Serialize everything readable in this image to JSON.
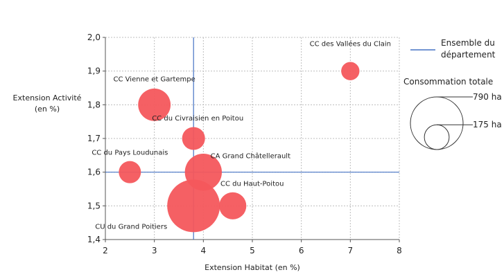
{
  "chart_data": {
    "type": "scatter",
    "xlabel": "Extension Habitat  (en %)",
    "ylabel": [
      "Extension Activité",
      "(en %)"
    ],
    "xlim": [
      2,
      8
    ],
    "ylim": [
      1.4,
      2.0
    ],
    "x_ticks": [
      "2",
      "3",
      "4",
      "5",
      "6",
      "7",
      "8"
    ],
    "y_ticks": [
      "1,4",
      "1,5",
      "1,6",
      "1,7",
      "1,8",
      "1,9",
      "2,0"
    ],
    "grid": true,
    "reference_lines": {
      "x": 3.8,
      "y": 1.6,
      "color": "#4472c4"
    },
    "bubble_color": "#f4575c",
    "points": [
      {
        "label": "CC des Vallées du Clain",
        "x": 7.0,
        "y": 1.9,
        "size_ha": 95
      },
      {
        "label": "CC Vienne et Gartempe",
        "x": 3.0,
        "y": 1.8,
        "size_ha": 300
      },
      {
        "label": "CC du Civraisien en Poitou",
        "x": 3.8,
        "y": 1.7,
        "size_ha": 150
      },
      {
        "label": "CC du Pays Loudunais",
        "x": 2.5,
        "y": 1.6,
        "size_ha": 140
      },
      {
        "label": "CA Grand Châtellerault",
        "x": 4.0,
        "y": 1.6,
        "size_ha": 390
      },
      {
        "label": "CC du Haut-Poitou",
        "x": 4.6,
        "y": 1.5,
        "size_ha": 210
      },
      {
        "label": "CU du Grand Poitiers",
        "x": 3.8,
        "y": 1.5,
        "size_ha": 790
      }
    ],
    "legend": {
      "line_label": [
        "Ensemble du",
        "département"
      ],
      "size_title": "Consommation totale",
      "size_refs": [
        {
          "label": "790 ha",
          "value": 790
        },
        {
          "label": "175 ha",
          "value": 175
        }
      ]
    }
  }
}
